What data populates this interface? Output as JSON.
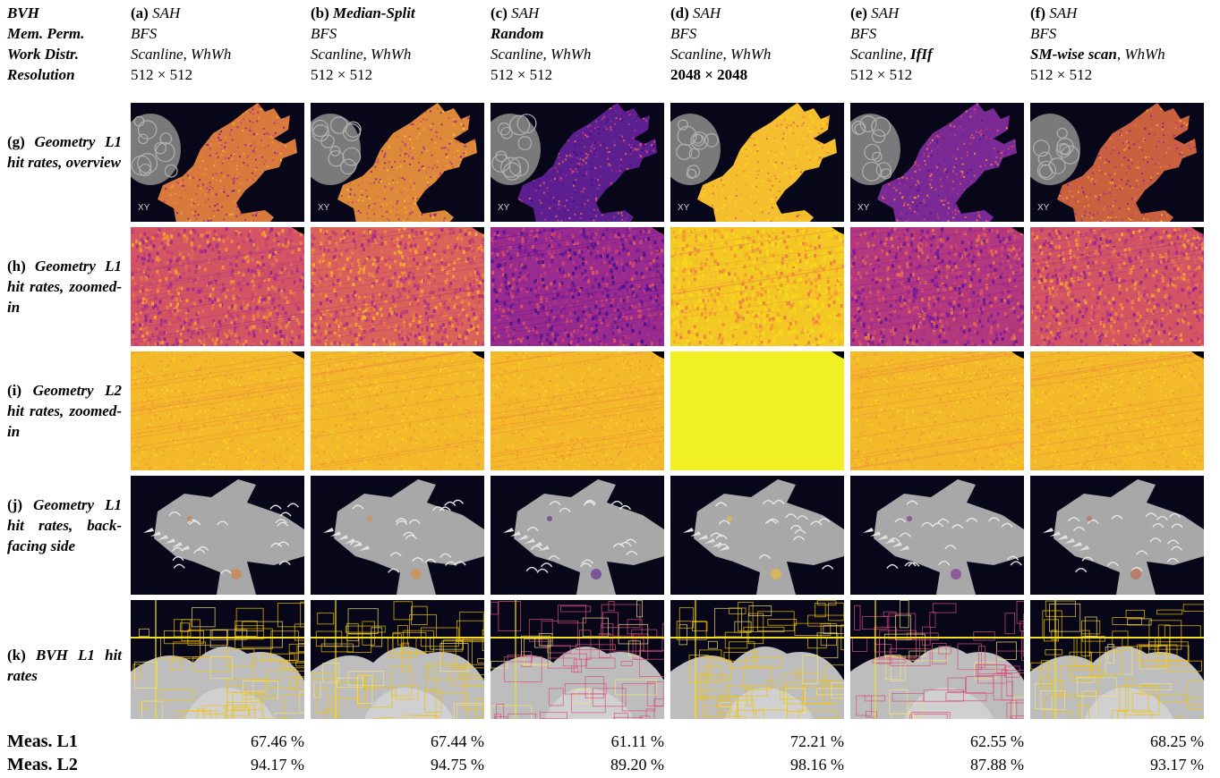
{
  "header_labels": [
    "BVH",
    "Mem. Perm.",
    "Work Distr.",
    "Resolution"
  ],
  "columns": [
    {
      "letter": "(a)",
      "bvh": "SAH",
      "mem": "BFS",
      "work_a": "Scanline",
      "work_b": "WhWh",
      "resolution": "512 × 512",
      "bold": [],
      "accent": "#d77a3c",
      "density": 0.55
    },
    {
      "letter": "(b)",
      "bvh": "Median-Split",
      "mem": "BFS",
      "work_a": "Scanline",
      "work_b": "WhWh",
      "resolution": "512 × 512",
      "bold": [
        "bvh"
      ],
      "accent": "#dc8a3a",
      "density": 0.6
    },
    {
      "letter": "(c)",
      "bvh": "SAH",
      "mem": "Random",
      "work_a": "Scanline",
      "work_b": "WhWh",
      "resolution": "512 × 512",
      "bold": [
        "mem"
      ],
      "accent": "#5c1f8f",
      "density": 0.3
    },
    {
      "letter": "(d)",
      "bvh": "SAH",
      "mem": "BFS",
      "work_a": "Scanline",
      "work_b": "WhWh",
      "resolution": "2048 × 2048",
      "bold": [
        "resolution"
      ],
      "accent": "#f4be2e",
      "density": 0.95
    },
    {
      "letter": "(e)",
      "bvh": "SAH",
      "mem": "BFS",
      "work_a": "Scanline",
      "work_b": "IfIf",
      "resolution": "512 × 512",
      "bold": [
        "work_b"
      ],
      "accent": "#7a2a95",
      "density": 0.4
    },
    {
      "letter": "(f)",
      "bvh": "SAH",
      "mem": "BFS",
      "work_a": "SM-wise scan",
      "work_b": "WhWh",
      "resolution": "512 × 512",
      "bold": [
        "work_a"
      ],
      "accent": "#c9603e",
      "density": 0.55
    }
  ],
  "rows": [
    {
      "letter": "(g)",
      "label": "Geometry L1 hit rates, overview",
      "kind": "overview"
    },
    {
      "letter": "(h)",
      "label": "Geometry L1 hit rates, zoomed-in",
      "kind": "zoom-l1"
    },
    {
      "letter": "(i)",
      "label": "Geometry L2 hit rates, zoomed-in",
      "kind": "zoom-l2"
    },
    {
      "letter": "(j)",
      "label": "Geometry L1 hit rates, back-facing side",
      "kind": "back"
    },
    {
      "letter": "(k)",
      "label": "BVH L1 hit rates",
      "kind": "bvh"
    }
  ],
  "overview_text": "XY",
  "measurements": [
    {
      "label": "Meas. L1",
      "values": [
        "67.46 %",
        "67.44 %",
        "61.11 %",
        "72.21 %",
        "62.55 %",
        "68.25 %"
      ]
    },
    {
      "label": "Meas. L2",
      "values": [
        "94.17 %",
        "94.75 %",
        "89.20 %",
        "98.16 %",
        "87.88 %",
        "93.17 %"
      ]
    }
  ],
  "colors": {
    "background": "#08071a",
    "heat_low": "#3b0f8c",
    "heat_mid": "#c43c7c",
    "heat_high": "#f5d31b",
    "mesh": "#c8c8c8"
  }
}
